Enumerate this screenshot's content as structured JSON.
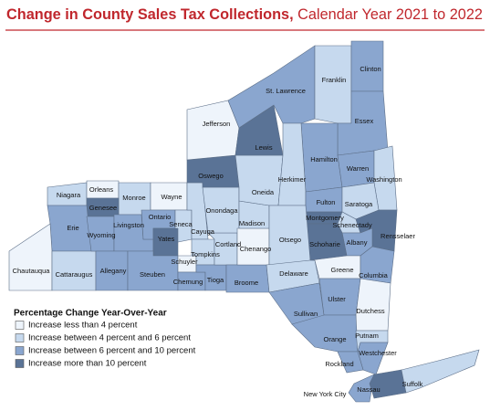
{
  "header": {
    "title_bold": "Change in County Sales Tax Collections,",
    "title_rest": "Calendar Year 2021 to 2022"
  },
  "legend": {
    "title": "Percentage Change Year-Over-Year",
    "classes": [
      {
        "label": "Increase less than 4 percent",
        "color": "#eef4fb"
      },
      {
        "label": "Increase between 4 percent and 6 percent",
        "color": "#c6d9ee"
      },
      {
        "label": "Increase between 6 percent and 10 percent",
        "color": "#8aa6cf"
      },
      {
        "label": "Increase more than 10 percent",
        "color": "#5a7396"
      }
    ]
  },
  "counties": [
    {
      "name": "Niagara",
      "class": 1
    },
    {
      "name": "Orleans",
      "class": 0
    },
    {
      "name": "Monroe",
      "class": 1
    },
    {
      "name": "Wayne",
      "class": 0
    },
    {
      "name": "Genesee",
      "class": 3
    },
    {
      "name": "Erie",
      "class": 2
    },
    {
      "name": "Chautauqua",
      "class": 0
    },
    {
      "name": "Cattaraugus",
      "class": 1
    },
    {
      "name": "Wyoming",
      "class": 2
    },
    {
      "name": "Livingston",
      "class": 2
    },
    {
      "name": "Allegany",
      "class": 2
    },
    {
      "name": "Ontario",
      "class": 2
    },
    {
      "name": "Yates",
      "class": 3
    },
    {
      "name": "Steuben",
      "class": 2
    },
    {
      "name": "Seneca",
      "class": 1
    },
    {
      "name": "Cayuga",
      "class": 1
    },
    {
      "name": "Schuyler",
      "class": 0
    },
    {
      "name": "Chemung",
      "class": 2
    },
    {
      "name": "Tompkins",
      "class": 1
    },
    {
      "name": "Tioga",
      "class": 2
    },
    {
      "name": "Cortland",
      "class": 1
    },
    {
      "name": "Onondaga",
      "class": 1
    },
    {
      "name": "Oswego",
      "class": 3
    },
    {
      "name": "Broome",
      "class": 2
    },
    {
      "name": "Chenango",
      "class": 0
    },
    {
      "name": "Madison",
      "class": 1
    },
    {
      "name": "Oneida",
      "class": 1
    },
    {
      "name": "Jefferson",
      "class": 0
    },
    {
      "name": "Lewis",
      "class": 3
    },
    {
      "name": "St. Lawrence",
      "class": 2
    },
    {
      "name": "Franklin",
      "class": 1
    },
    {
      "name": "Clinton",
      "class": 2
    },
    {
      "name": "Essex",
      "class": 2
    },
    {
      "name": "Hamilton",
      "class": 2
    },
    {
      "name": "Herkimer",
      "class": 1
    },
    {
      "name": "Warren",
      "class": 2
    },
    {
      "name": "Washington",
      "class": 1
    },
    {
      "name": "Fulton",
      "class": 2
    },
    {
      "name": "Saratoga",
      "class": 1
    },
    {
      "name": "Montgomery",
      "class": 3
    },
    {
      "name": "Schenectady",
      "class": 1
    },
    {
      "name": "Rensselaer",
      "class": 3
    },
    {
      "name": "Albany",
      "class": 2
    },
    {
      "name": "Schoharie",
      "class": 3
    },
    {
      "name": "Otsego",
      "class": 1
    },
    {
      "name": "Delaware",
      "class": 1
    },
    {
      "name": "Greene",
      "class": 0
    },
    {
      "name": "Columbia",
      "class": 2
    },
    {
      "name": "Ulster",
      "class": 2
    },
    {
      "name": "Sullivan",
      "class": 2
    },
    {
      "name": "Dutchess",
      "class": 0
    },
    {
      "name": "Orange",
      "class": 2
    },
    {
      "name": "Putnam",
      "class": 1
    },
    {
      "name": "Westchester",
      "class": 2
    },
    {
      "name": "Rockland",
      "class": 2
    },
    {
      "name": "New York City",
      "class": 2
    },
    {
      "name": "Nassau",
      "class": 3
    },
    {
      "name": "Suffolk",
      "class": 1
    }
  ]
}
